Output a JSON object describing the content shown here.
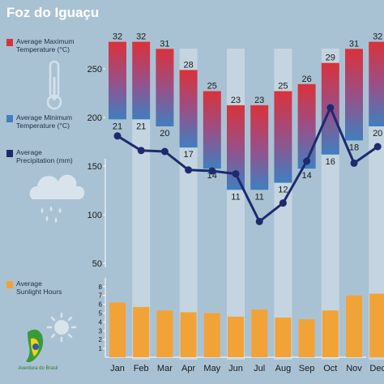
{
  "page": {
    "title": "Foz do Iguaçu",
    "legend": {
      "max": "Average Maximum Temperature (°C)",
      "min": "Average Minimum Temperature (°C)",
      "precip": "Average Precipitation (mm)",
      "sun": "Average Sunlight Hours"
    },
    "logo_text": "Aventura do Brasil",
    "icons": [
      "thermometer-icon",
      "rain-cloud-icon",
      "sun-icon",
      "aventura-do-brasil-logo"
    ],
    "colors": {
      "background": "#a9c2d3",
      "max_temp": "#d9323a",
      "min_temp": "#3f7fc0",
      "precipitation": "#1d2a6e",
      "sunlight": "#f2a337",
      "month_stripe": "#c9d8e3"
    }
  },
  "chart_data": [
    {
      "type": "bar",
      "categories": [
        "Jan",
        "Feb",
        "Mar",
        "Apr",
        "May",
        "Jun",
        "Jul",
        "Aug",
        "Sep",
        "Oct",
        "Nov",
        "Dec"
      ],
      "series": [
        {
          "name": "Average Maximum Temperature (°C)",
          "values": [
            32,
            32,
            31,
            28,
            25,
            23,
            23,
            25,
            26,
            29,
            31,
            32
          ]
        },
        {
          "name": "Average Minimum Temperature (°C)",
          "values": [
            21,
            21,
            20,
            17,
            14,
            11,
            11,
            12,
            14,
            16,
            18,
            20
          ]
        }
      ]
    },
    {
      "type": "line",
      "categories": [
        "Jan",
        "Feb",
        "Mar",
        "Apr",
        "May",
        "Jun",
        "Jul",
        "Aug",
        "Sep",
        "Oct",
        "Nov",
        "Dec"
      ],
      "series": [
        {
          "name": "Average Precipitation (mm)",
          "values": [
            181,
            166,
            165,
            146,
            145,
            142,
            93,
            112,
            155,
            210,
            153,
            170
          ]
        }
      ],
      "ylim": [
        50,
        250
      ],
      "yticks": [
        50,
        100,
        150,
        200,
        250
      ]
    },
    {
      "type": "bar",
      "categories": [
        "Jan",
        "Feb",
        "Mar",
        "Apr",
        "May",
        "Jun",
        "Jul",
        "Aug",
        "Sep",
        "Oct",
        "Nov",
        "Dec"
      ],
      "series": [
        {
          "name": "Average Sunlight Hours",
          "values": [
            6.2,
            5.7,
            5.3,
            5.1,
            5.0,
            4.6,
            5.4,
            4.5,
            4.3,
            5.3,
            7.0,
            7.2
          ]
        }
      ],
      "ylim": [
        0,
        8
      ],
      "yticks": [
        1,
        2,
        3,
        4,
        5,
        6,
        7,
        8
      ]
    }
  ]
}
